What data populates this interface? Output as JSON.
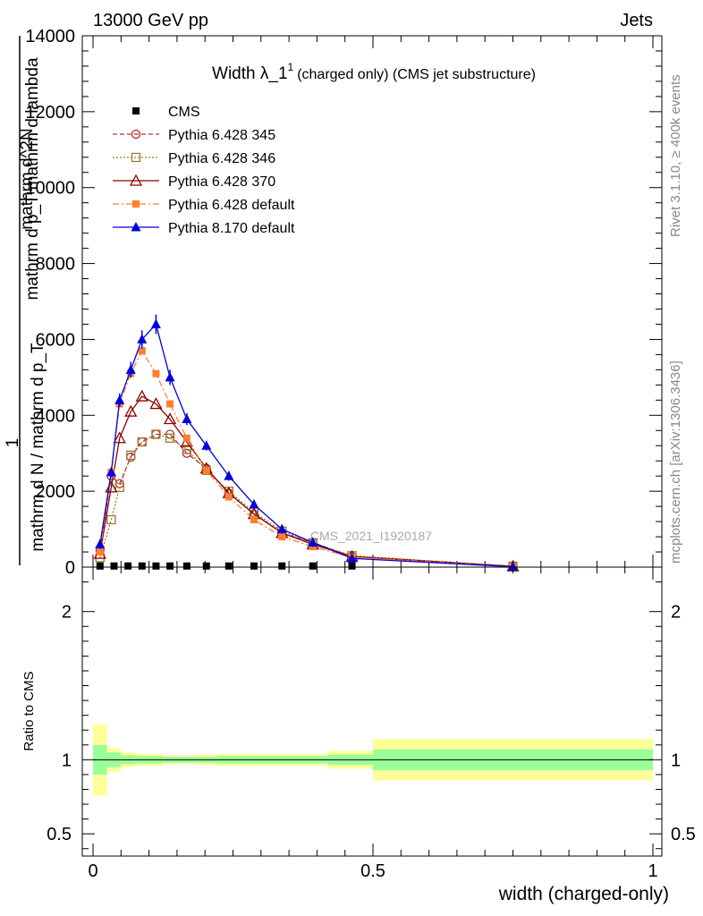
{
  "header": {
    "left": "13000 GeV pp",
    "right": "Jets",
    "side_top": "Rivet 3.1.10, ≥ 400k events",
    "side_bottom": "mcplots.cern.ch [arXiv:1306.3436]",
    "watermark": "CMS_2021_I1920187"
  },
  "chart_data": [
    {
      "type": "line",
      "title_main": "Width λ_1",
      "title_sup": "1",
      "title_rest": "(charged only) (CMS jet substructure)",
      "ylabel_one": "1",
      "ylabel_frac1": "mathrm d N / mathrm d p_T",
      "ylabel_frac2": "mathrm d^2N",
      "ylabel_frac3": "mathrm d p_T mathrm d lambda",
      "xlim": [
        0,
        1
      ],
      "ylim": [
        0,
        14000
      ],
      "yticks": [
        0,
        2000,
        4000,
        6000,
        8000,
        10000,
        12000,
        14000
      ],
      "ytick_labels": [
        "0",
        "2000",
        "4000",
        "6000",
        "8000",
        "10000",
        "12000",
        "14000"
      ],
      "legend_position": "top-left",
      "series": [
        {
          "name": "CMS",
          "color": "#000000",
          "marker": "square-filled",
          "line": "none",
          "x": [
            0.0125,
            0.0375,
            0.0625,
            0.0875,
            0.1125,
            0.1375,
            0.1675,
            0.2025,
            0.2425,
            0.2875,
            0.3375,
            0.3925,
            0.4625
          ],
          "values": [
            30,
            30,
            30,
            30,
            30,
            30,
            30,
            30,
            30,
            30,
            30,
            30,
            30
          ]
        },
        {
          "name": "Pythia 6.428 345",
          "color": "#b03030",
          "marker": "circle-open",
          "line": "dashed",
          "x": [
            0.0125,
            0.0325,
            0.0475,
            0.0675,
            0.0875,
            0.1125,
            0.1375,
            0.1675,
            0.2025,
            0.2425,
            0.2875,
            0.3375,
            0.3925,
            0.4625,
            0.75
          ],
          "values": [
            450,
            2400,
            2200,
            2900,
            3300,
            3500,
            3500,
            3000,
            2600,
            1950,
            1400,
            900,
            650,
            280,
            25
          ]
        },
        {
          "name": "Pythia 6.428 346",
          "color": "#a07830",
          "marker": "square-open",
          "line": "dotted",
          "x": [
            0.0125,
            0.0325,
            0.0475,
            0.0675,
            0.0875,
            0.1125,
            0.1375,
            0.1675,
            0.2025,
            0.2425,
            0.2875,
            0.3375,
            0.3925,
            0.4625,
            0.75
          ],
          "values": [
            250,
            1250,
            2100,
            2950,
            3300,
            3500,
            3400,
            3100,
            2550,
            2000,
            1450,
            950,
            640,
            300,
            25
          ]
        },
        {
          "name": "Pythia 6.428 370",
          "color": "#8b0000",
          "marker": "triangle-open",
          "line": "solid",
          "x": [
            0.0125,
            0.0325,
            0.0475,
            0.0675,
            0.0875,
            0.1125,
            0.1375,
            0.1675,
            0.2025,
            0.2425,
            0.2875,
            0.3375,
            0.3925,
            0.4625,
            0.75
          ],
          "values": [
            350,
            2100,
            3400,
            4100,
            4500,
            4300,
            3900,
            3300,
            2600,
            1950,
            1400,
            900,
            600,
            280,
            20
          ]
        },
        {
          "name": "Pythia 6.428 default",
          "color": "#ff7f30",
          "marker": "square-filled",
          "line": "dashdot",
          "x": [
            0.0125,
            0.0325,
            0.0475,
            0.0675,
            0.0875,
            0.1125,
            0.1375,
            0.1675,
            0.2025,
            0.2425,
            0.2875,
            0.3375,
            0.3925,
            0.4625,
            0.75
          ],
          "values": [
            400,
            2500,
            4300,
            5100,
            5700,
            5100,
            4300,
            3400,
            2550,
            1850,
            1250,
            800,
            540,
            260,
            15
          ]
        },
        {
          "name": "Pythia 8.170 default",
          "color": "#0000dd",
          "marker": "triangle-filled",
          "line": "solid",
          "x": [
            0.0125,
            0.0325,
            0.0475,
            0.0675,
            0.0875,
            0.1125,
            0.1375,
            0.1675,
            0.2025,
            0.2425,
            0.2875,
            0.3375,
            0.3925,
            0.4625,
            0.75
          ],
          "values": [
            600,
            2500,
            4400,
            5200,
            6000,
            6400,
            5000,
            3900,
            3200,
            2400,
            1650,
            1000,
            650,
            230,
            10
          ]
        }
      ]
    },
    {
      "type": "area",
      "ylabel": "Ratio to CMS",
      "xlabel": "width (charged-only)",
      "xlim": [
        0,
        1
      ],
      "ylim": [
        0.35,
        2.3
      ],
      "yticks": [
        0.5,
        1,
        2
      ],
      "ytick_labels": [
        "0.5",
        "1",
        "2"
      ],
      "xticks": [
        0,
        0.5,
        1
      ],
      "xtick_labels": [
        "0",
        "0.5",
        "1"
      ],
      "bands": {
        "edges": [
          0,
          0.025,
          0.05,
          0.075,
          0.1,
          0.125,
          0.15,
          0.185,
          0.22,
          0.265,
          0.31,
          0.365,
          0.42,
          0.5,
          1.0
        ],
        "inner_color": "#99ff99",
        "outer_color": "#ffff99",
        "inner_half": [
          0.1,
          0.05,
          0.03,
          0.025,
          0.025,
          0.02,
          0.02,
          0.02,
          0.025,
          0.025,
          0.025,
          0.025,
          0.035,
          0.07
        ],
        "outer_half": [
          0.24,
          0.08,
          0.05,
          0.04,
          0.04,
          0.03,
          0.03,
          0.035,
          0.04,
          0.04,
          0.04,
          0.04,
          0.06,
          0.14
        ]
      }
    }
  ]
}
